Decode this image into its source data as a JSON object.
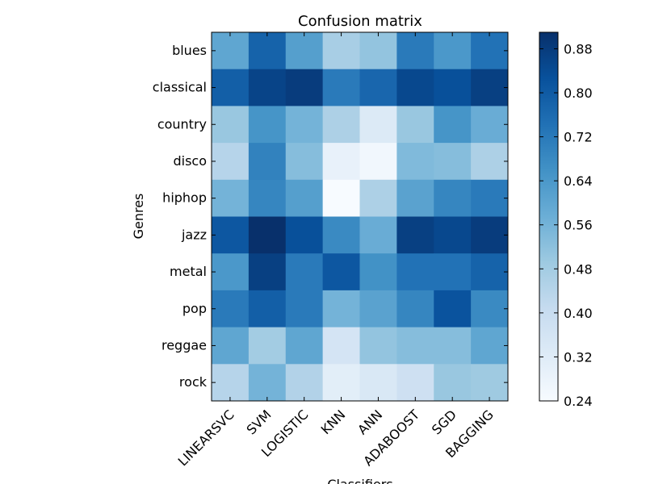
{
  "chart_data": {
    "type": "heatmap",
    "title": "Confusion matrix",
    "xlabel": "Classifiers",
    "ylabel": "Genres",
    "x_categories": [
      "LINEARSVC",
      "SVM",
      "LOGISTIC",
      "KNN",
      "ANN",
      "ADABOOST",
      "SGD",
      "BAGGING"
    ],
    "y_categories": [
      "blues",
      "classical",
      "country",
      "disco",
      "hiphop",
      "jazz",
      "metal",
      "pop",
      "reggae",
      "rock"
    ],
    "values": [
      [
        0.6,
        0.78,
        0.62,
        0.47,
        0.51,
        0.72,
        0.64,
        0.74
      ],
      [
        0.79,
        0.86,
        0.88,
        0.72,
        0.77,
        0.85,
        0.83,
        0.87
      ],
      [
        0.5,
        0.65,
        0.56,
        0.46,
        0.33,
        0.5,
        0.65,
        0.58
      ],
      [
        0.44,
        0.7,
        0.53,
        0.29,
        0.26,
        0.54,
        0.53,
        0.46
      ],
      [
        0.56,
        0.69,
        0.62,
        0.24,
        0.46,
        0.61,
        0.69,
        0.72
      ],
      [
        0.81,
        0.91,
        0.83,
        0.68,
        0.58,
        0.87,
        0.85,
        0.88
      ],
      [
        0.64,
        0.87,
        0.72,
        0.81,
        0.66,
        0.74,
        0.74,
        0.78
      ],
      [
        0.72,
        0.79,
        0.72,
        0.56,
        0.61,
        0.69,
        0.82,
        0.68
      ],
      [
        0.6,
        0.48,
        0.6,
        0.36,
        0.51,
        0.53,
        0.53,
        0.6
      ],
      [
        0.44,
        0.56,
        0.45,
        0.31,
        0.34,
        0.38,
        0.5,
        0.49
      ]
    ],
    "colormap": "Blues",
    "vmin": 0.24,
    "vmax": 0.91,
    "colorbar_ticks": [
      "0.24",
      "0.32",
      "0.40",
      "0.48",
      "0.56",
      "0.64",
      "0.72",
      "0.80",
      "0.88"
    ],
    "legend_position": "right"
  }
}
